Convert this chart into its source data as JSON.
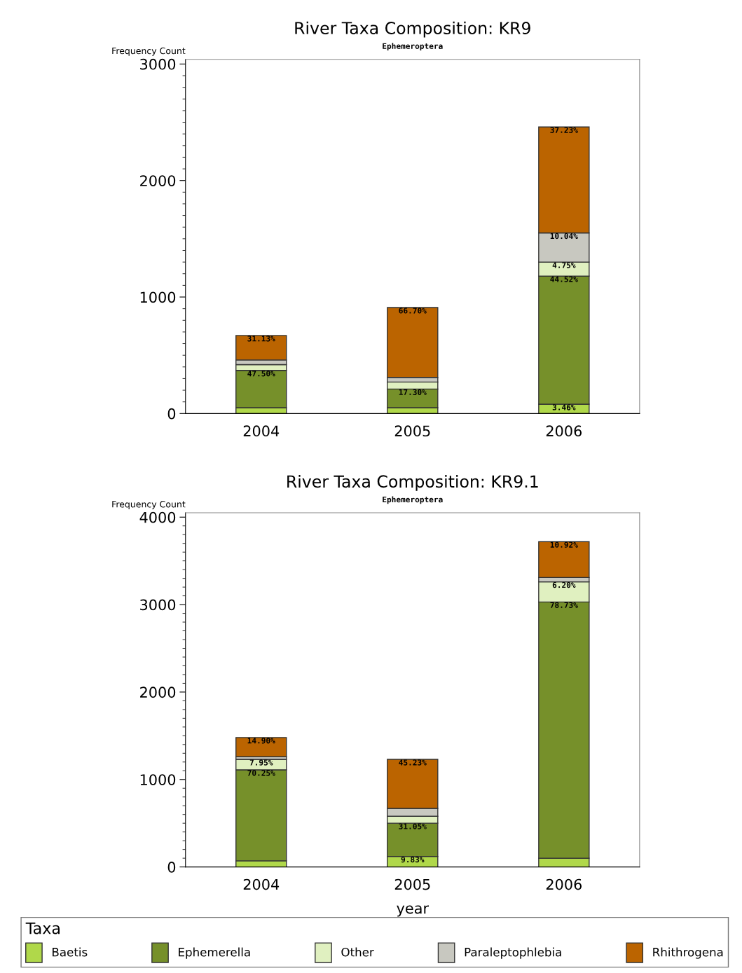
{
  "chart_data": [
    {
      "type": "bar",
      "title": "River Taxa Composition: KR9",
      "subtitle": "Ephemeroptera",
      "ylabel": "Frequency Count",
      "categories": [
        "2004",
        "2005",
        "2006"
      ],
      "stacked": true,
      "ylim": [
        0,
        3040
      ],
      "yticks": [
        0,
        1000,
        2000,
        3000
      ],
      "grid": false,
      "series": [
        {
          "color": "#b0d84a",
          "values": [
            50,
            50,
            80
          ]
        },
        {
          "color": "#76902a",
          "values": [
            320,
            160,
            1100
          ]
        },
        {
          "color": "#e0f0c0",
          "values": [
            50,
            60,
            120
          ]
        },
        {
          "color": "#c8c8c0",
          "values": [
            40,
            40,
            250
          ]
        },
        {
          "color": "#bb6400",
          "values": [
            210,
            600,
            910
          ]
        }
      ],
      "annotations": [
        {
          "text": "47.50%",
          "x": "2004",
          "y": 370
        },
        {
          "text": "31.13%",
          "x": "2004",
          "y": 670
        },
        {
          "text": "17.30%",
          "x": "2005",
          "y": 210
        },
        {
          "text": "66.70%",
          "x": "2005",
          "y": 910
        },
        {
          "text": "3.46%",
          "x": "2006",
          "y": 80
        },
        {
          "text": "44.52%",
          "x": "2006",
          "y": 1180
        },
        {
          "text": "4.75%",
          "x": "2006",
          "y": 1300
        },
        {
          "text": "10.04%",
          "x": "2006",
          "y": 1550
        },
        {
          "text": "37.23%",
          "x": "2006",
          "y": 2460
        }
      ]
    },
    {
      "type": "bar",
      "title": "River Taxa Composition: KR9.1",
      "subtitle": "Ephemeroptera",
      "ylabel": "Frequency Count",
      "xlabel": "year",
      "categories": [
        "2004",
        "2005",
        "2006"
      ],
      "stacked": true,
      "ylim": [
        0,
        4050
      ],
      "yticks": [
        0,
        1000,
        2000,
        3000,
        4000
      ],
      "grid": false,
      "legend": "bottom",
      "legend_title": "Taxa",
      "series": [
        {
          "name": "Baetis",
          "color": "#b0d84a",
          "values": [
            70,
            120,
            100
          ]
        },
        {
          "name": "Ephemerella",
          "color": "#76902a",
          "values": [
            1040,
            380,
            2930
          ]
        },
        {
          "name": "Other",
          "color": "#e0f0c0",
          "values": [
            120,
            80,
            230
          ]
        },
        {
          "name": "Paraleptophlebia",
          "color": "#c8c8c0",
          "values": [
            30,
            90,
            50
          ]
        },
        {
          "name": "Rhithrogena",
          "color": "#bb6400",
          "values": [
            220,
            560,
            410
          ]
        }
      ],
      "annotations": [
        {
          "text": "70.25%",
          "x": "2004",
          "y": 1110
        },
        {
          "text": "7.95%",
          "x": "2004",
          "y": 1230
        },
        {
          "text": "14.90%",
          "x": "2004",
          "y": 1480
        },
        {
          "text": "9.83%",
          "x": "2005",
          "y": 120
        },
        {
          "text": "31.05%",
          "x": "2005",
          "y": 500
        },
        {
          "text": "45.23%",
          "x": "2005",
          "y": 1230
        },
        {
          "text": "78.73%",
          "x": "2006",
          "y": 3030
        },
        {
          "text": "6.20%",
          "x": "2006",
          "y": 3260
        },
        {
          "text": "10.92%",
          "x": "2006",
          "y": 3720
        }
      ]
    }
  ]
}
